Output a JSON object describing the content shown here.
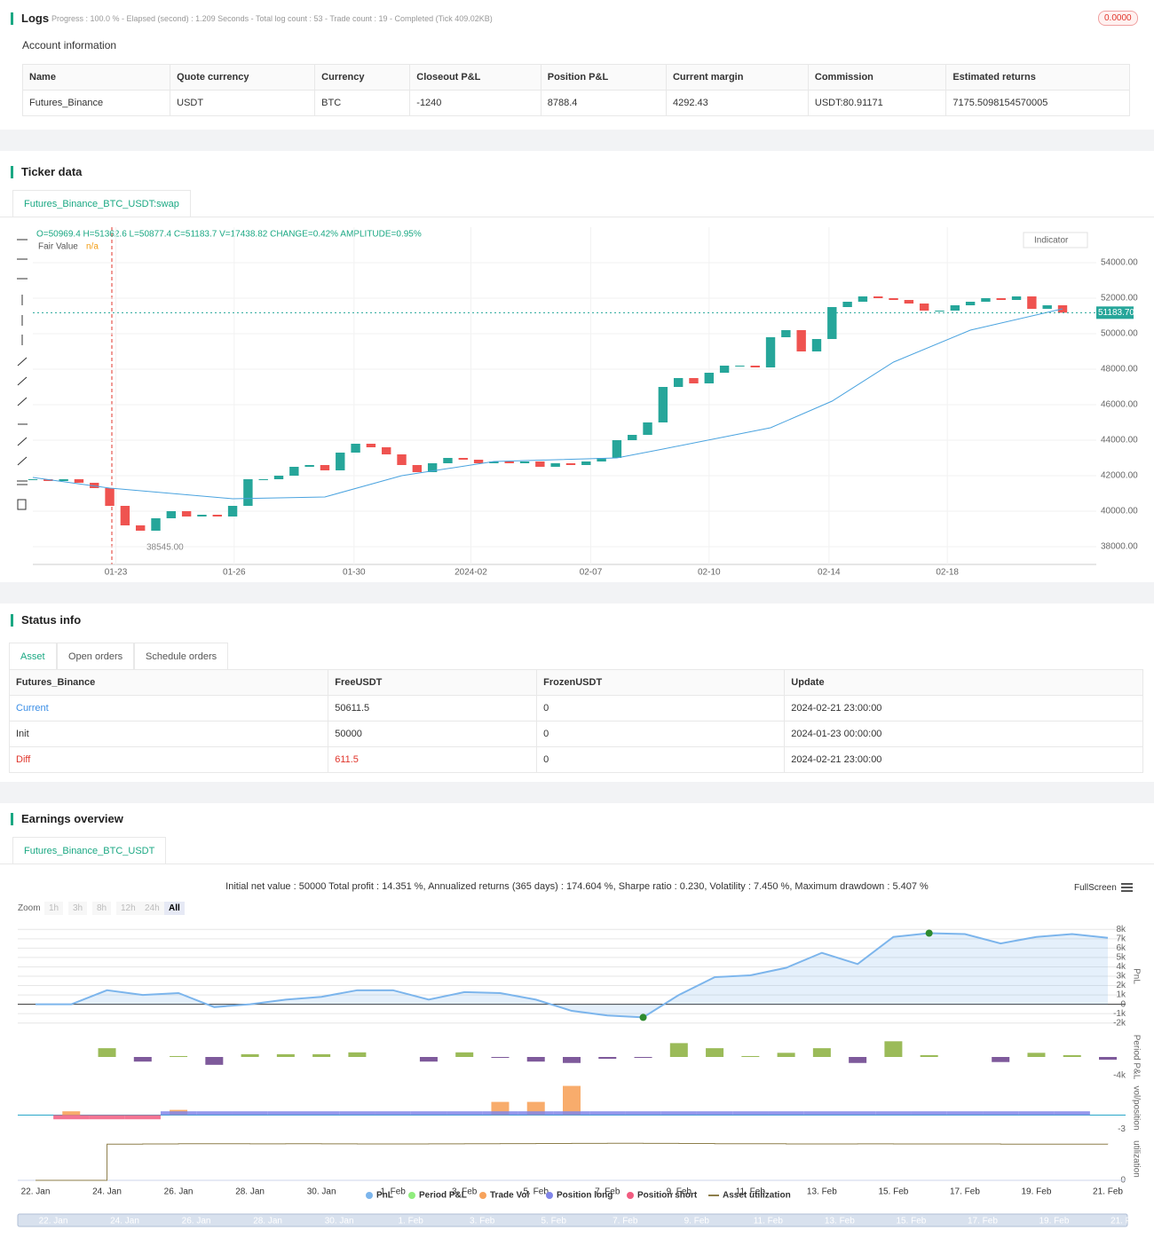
{
  "logs": {
    "title": "Logs",
    "progress": "Progress : 100.0 % - Elapsed (second) : 1.209  Seconds - Total log count : 53 - Trade count : 19 - Completed (Tick 409.02KB)",
    "badge": "0.0000"
  },
  "account": {
    "title": "Account information",
    "columns": [
      "Name",
      "Quote currency",
      "Currency",
      "Closeout P&L",
      "Position P&L",
      "Current margin",
      "Commission",
      "Estimated returns"
    ],
    "rows": [
      [
        "Futures_Binance",
        "USDT",
        "BTC",
        "-1240",
        "8788.4",
        "4292.43",
        "USDT:80.91171",
        "7175.5098154570005"
      ]
    ]
  },
  "ticker": {
    "title": "Ticker data",
    "tab": "Futures_Binance_BTC_USDT:swap"
  },
  "status": {
    "title": "Status info",
    "tabs": [
      "Asset",
      "Open orders",
      "Schedule orders"
    ],
    "columns": [
      "Futures_Binance",
      "FreeUSDT",
      "FrozenUSDT",
      "Update"
    ],
    "rows": [
      [
        "Current",
        "50611.5",
        "0",
        "2024-02-21 23:00:00"
      ],
      [
        "Init",
        "50000",
        "0",
        "2024-01-23 00:00:00"
      ],
      [
        "Diff",
        "611.5",
        "0",
        "2024-02-21 23:00:00"
      ]
    ]
  },
  "earnings": {
    "title": "Earnings overview",
    "tab": "Futures_Binance_BTC_USDT",
    "zoom_label": "Zoom",
    "zoom_buttons": [
      "1h",
      "3h",
      "8h",
      "12h",
      "24h",
      "All"
    ],
    "fullscreen": "FullScreen"
  },
  "chart_data": [
    {
      "type": "candlestick",
      "legend_text": "O=50969.4 H=51362.6 L=50877.4 C=51183.7 V=17438.82 CHANGE=0.42% AMPLITUDE=0.95%",
      "indicator_value": "n/a",
      "indicator_button": "Indicator",
      "up_color": "#26a69a",
      "down_color": "#ef5350",
      "values": [
        41800,
        41700,
        41800,
        41600,
        41300,
        40300,
        39200,
        38900,
        39600,
        40000,
        39700,
        39800,
        39700,
        40300,
        41800,
        41800,
        42000,
        42500,
        42600,
        42300,
        43300,
        43800,
        43600,
        43200,
        42600,
        42200,
        42700,
        43000,
        42900,
        42700,
        42800,
        42700,
        42800,
        42500,
        42700,
        42600,
        42800,
        43000,
        44000,
        44300,
        45000,
        47000,
        47500,
        47200,
        47800,
        48200,
        48200,
        48100,
        49800,
        50200,
        49000,
        49700,
        51500,
        51800,
        52100,
        52000,
        51900,
        51700,
        51300,
        51300,
        51600,
        51800,
        52000,
        51900,
        52100,
        51400,
        51600,
        51183.7
      ],
      "series": [
        {
          "name": "Fair Value",
          "color": "#4aa3df",
          "x": [
            0,
            5,
            13,
            19,
            24,
            30,
            38,
            41,
            48,
            52,
            56,
            61,
            67
          ],
          "values": [
            41900,
            41300,
            40700,
            40800,
            42000,
            42800,
            43000,
            43500,
            44700,
            46200,
            48400,
            50200,
            51400
          ]
        }
      ],
      "last_price": {
        "value": 51183.7,
        "label": "51183.70"
      },
      "low_annotation": {
        "value": 38545,
        "label": "38545.00"
      },
      "xlim": [
        0,
        67
      ],
      "ylim": [
        37000,
        56000
      ],
      "yticks": [
        {
          "value": 54000,
          "label": "54000.00"
        },
        {
          "value": 52000,
          "label": "52000.00"
        },
        {
          "value": 50000,
          "label": "50000.00"
        },
        {
          "value": 48000,
          "label": "48000.00"
        },
        {
          "value": 46000,
          "label": "46000.00"
        },
        {
          "value": 44000,
          "label": "44000.00"
        },
        {
          "value": 42000,
          "label": "42000.00"
        },
        {
          "value": 40000,
          "label": "40000.00"
        },
        {
          "value": 38000,
          "label": "38000.00"
        }
      ],
      "xticks": [
        {
          "value": 5.4,
          "label": "01-23"
        },
        {
          "value": 13.1,
          "label": "01-26"
        },
        {
          "value": 20.9,
          "label": "01-30"
        },
        {
          "value": 28.5,
          "label": "2024-02"
        },
        {
          "value": 36.3,
          "label": "02-07"
        },
        {
          "value": 44,
          "label": "02-10"
        },
        {
          "value": 51.8,
          "label": "02-14"
        },
        {
          "value": 59.5,
          "label": "02-18"
        }
      ],
      "grid": true
    },
    {
      "type": "multi-panel",
      "summary": "Initial net value : 50000 Total profit : 14.351 %, Annualized returns (365 days) : 174.604 %, Sharpe ratio : 0.230, Volatility : 7.450 %, Maximum drawdown : 5.407 %",
      "x": [
        "22. Jan",
        "23. Jan",
        "24. Jan",
        "25. Jan",
        "26. Jan",
        "27. Jan",
        "28. Jan",
        "29. Jan",
        "30. Jan",
        "31. Jan",
        "1. Feb",
        "2. Feb",
        "3. Feb",
        "4. Feb",
        "5. Feb",
        "6. Feb",
        "7. Feb",
        "8. Feb",
        "9. Feb",
        "10. Feb",
        "11. Feb",
        "12. Feb",
        "13. Feb",
        "14. Feb",
        "15. Feb",
        "16. Feb",
        "17. Feb",
        "18. Feb",
        "19. Feb",
        "20. Feb",
        "21. Feb"
      ],
      "series": [
        {
          "name": "PnL",
          "color": "#7cb5ec",
          "values": [
            0,
            0,
            1500,
            1000,
            1200,
            -300,
            0,
            500,
            800,
            1500,
            1500,
            500,
            1300,
            1200,
            500,
            -700,
            -1200,
            -1400,
            1000,
            2900,
            3100,
            3900,
            5500,
            4300,
            7200,
            7600,
            7500,
            6500,
            7200,
            7500,
            7100
          ]
        },
        {
          "name": "Period P&L",
          "color": "#90ed7d",
          "positive_color": "#9bbb59",
          "negative_color": "#7e5a9b",
          "values": [
            null,
            null,
            1900,
            -1000,
            200,
            -1700,
            600,
            600,
            600,
            1000,
            null,
            -1000,
            1000,
            -200,
            -1000,
            -1300,
            -400,
            -200,
            3000,
            1900,
            200,
            900,
            1900,
            -1300,
            3400,
            400,
            null,
            -1100,
            900,
            400,
            -600
          ]
        },
        {
          "name": "Trade Vol",
          "color": "#f7a35c",
          "values": [
            null,
            0.8,
            null,
            null,
            1.1,
            null,
            null,
            null,
            null,
            null,
            null,
            null,
            null,
            2.8,
            2.8,
            6.2,
            null,
            null,
            null,
            null,
            null,
            null,
            null,
            null,
            null,
            null,
            null,
            null,
            null,
            null,
            null
          ]
        },
        {
          "name": "Position long",
          "color": "#8085e9",
          "values": [
            null,
            null,
            null,
            null,
            0.8,
            0.8,
            0.8,
            0.8,
            0.8,
            0.8,
            0.8,
            0.8,
            0.8,
            0.8,
            0.8,
            0.8,
            0.8,
            0.8,
            0.8,
            0.8,
            0.8,
            0.8,
            0.8,
            0.8,
            0.8,
            0.8,
            0.8,
            0.8,
            0.8,
            0.8,
            null
          ]
        },
        {
          "name": "Position short",
          "color": "#f15c80",
          "values": [
            null,
            -0.9,
            -0.9,
            -0.9,
            null,
            null,
            null,
            null,
            null,
            null,
            null,
            null,
            null,
            null,
            null,
            null,
            null,
            null,
            null,
            null,
            null,
            null,
            null,
            null,
            null,
            null,
            null,
            null,
            null,
            null,
            null
          ]
        },
        {
          "name": "Asset utilization",
          "color": "#8d7e4a",
          "values": [
            0,
            0,
            85,
            85.5,
            86,
            86,
            85.8,
            86,
            85.7,
            85.5,
            85.5,
            85.8,
            86,
            86.3,
            86.5,
            86.8,
            87,
            86.8,
            86.5,
            86,
            86,
            85.5,
            85.5,
            85.7,
            85.5,
            85.3,
            85.3,
            85,
            85,
            85,
            84.8
          ]
        }
      ],
      "panels": [
        {
          "axis_title": "PnL",
          "ylim": [
            -2500,
            8500
          ],
          "yticks": [
            {
              "value": 8000,
              "label": "8k"
            },
            {
              "value": 7000,
              "label": "7k"
            },
            {
              "value": 6000,
              "label": "6k"
            },
            {
              "value": 5000,
              "label": "5k"
            },
            {
              "value": 4000,
              "label": "4k"
            },
            {
              "value": 3000,
              "label": "3k"
            },
            {
              "value": 2000,
              "label": "2k"
            },
            {
              "value": 1000,
              "label": "1k"
            },
            0,
            {
              "value": -1000,
              "label": "-1k"
            },
            {
              "value": -2000,
              "label": "-2k"
            }
          ]
        },
        {
          "axis_title": "Period P&L",
          "ylim": [
            -5000,
            5000
          ],
          "yticks": [
            {
              "value": -4000,
              "label": "-4k"
            }
          ]
        },
        {
          "axis_title": "vol/position",
          "ylim": [
            -3.5,
            6.5
          ],
          "yticks": [
            -3
          ]
        },
        {
          "axis_title": "utilization",
          "ylim": [
            0,
            100
          ],
          "yticks": [
            0
          ]
        }
      ]
    }
  ]
}
